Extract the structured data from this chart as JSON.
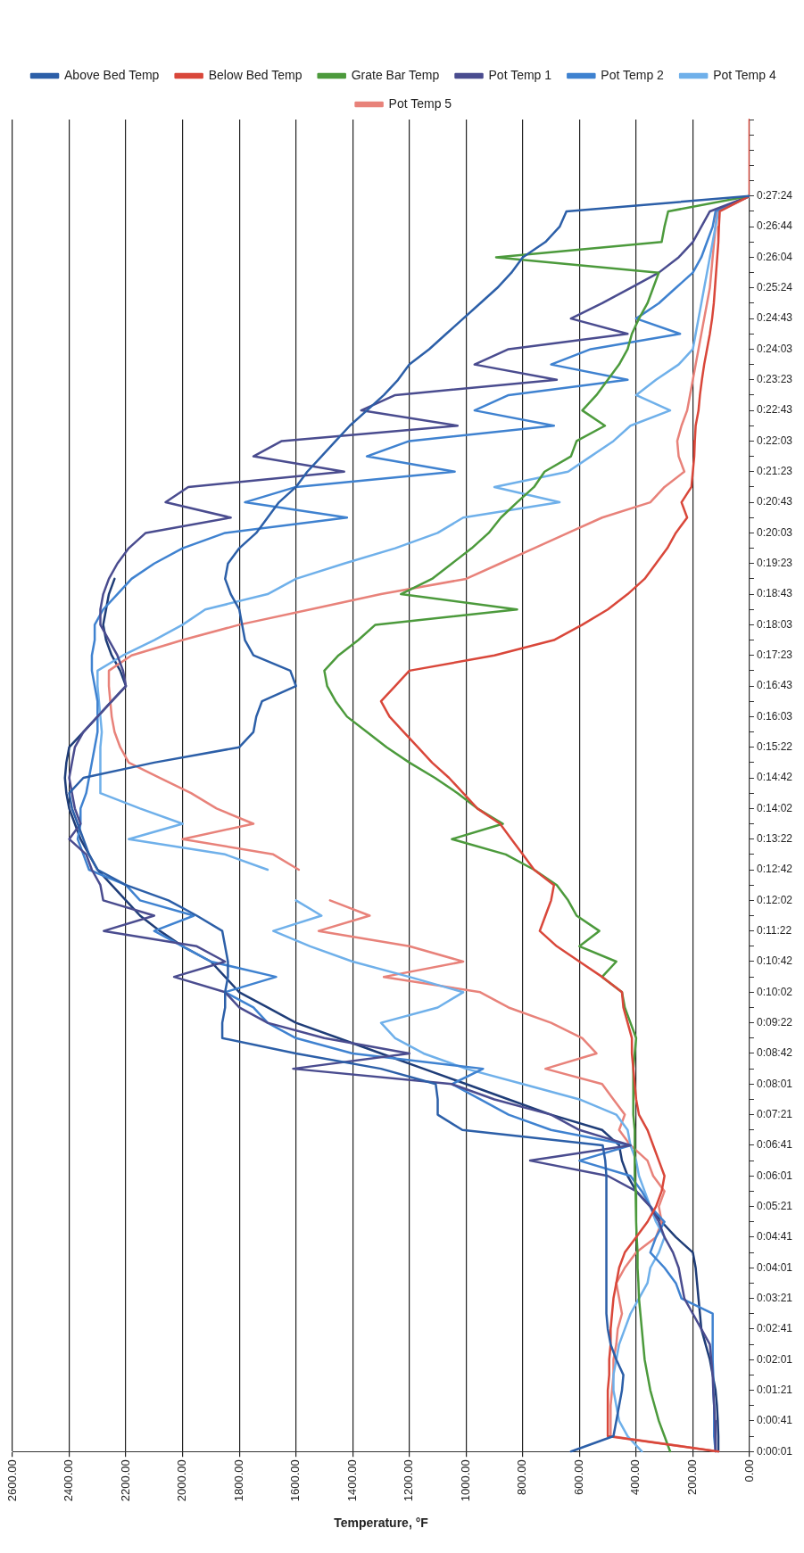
{
  "chart_data": {
    "type": "line",
    "orientation": "horizontal",
    "xlabel": "Temperature, °F",
    "grid": "x",
    "legend": "top",
    "marker": "none",
    "categories": [
      null,
      null,
      null,
      null,
      null,
      "0:27:24",
      null,
      "0:26:44",
      null,
      "0:26:04",
      null,
      "0:25:24",
      null,
      "0:24:43",
      null,
      "0:24:03",
      null,
      "0:23:23",
      null,
      "0:22:43",
      null,
      "0:22:03",
      null,
      "0:21:23",
      null,
      "0:20:43",
      null,
      "0:20:03",
      null,
      "0:19:23",
      null,
      "0:18:43",
      null,
      "0:18:03",
      null,
      "0:17:23",
      null,
      "0:16:43",
      null,
      "0:16:03",
      null,
      "0:15:22",
      null,
      "0:14:42",
      null,
      "0:14:02",
      null,
      "0:13:22",
      null,
      "0:12:42",
      null,
      "0:12:02",
      null,
      "0:11:22",
      null,
      "0:10:42",
      null,
      "0:10:02",
      null,
      "0:09:22",
      null,
      "0:08:42",
      null,
      "0:08:01",
      null,
      "0:07:21",
      null,
      "0:06:41",
      null,
      "0:06:01",
      null,
      "0:05:21",
      null,
      "0:04:41",
      null,
      "0:04:01",
      null,
      "0:03:21",
      null,
      "0:02:41",
      null,
      "0:02:01",
      null,
      "0:01:21",
      null,
      "0:00:41",
      null,
      "0:00:01"
    ],
    "xlim": [
      2600,
      0
    ],
    "xticks": [
      {
        "value": 0,
        "label": "0.00"
      },
      {
        "value": 200,
        "label": "200.00"
      },
      {
        "value": 400,
        "label": "400.00"
      },
      {
        "value": 600,
        "label": "600.00"
      },
      {
        "value": 800,
        "label": "800.00"
      },
      {
        "value": 1000,
        "label": "1000.00"
      },
      {
        "value": 1200,
        "label": "1200.00"
      },
      {
        "value": 1400,
        "label": "1400.00"
      },
      {
        "value": 1600,
        "label": "1600.00"
      },
      {
        "value": 1800,
        "label": "1800.00"
      },
      {
        "value": 2000,
        "label": "2000.00"
      },
      {
        "value": 2200,
        "label": "2200.00"
      },
      {
        "value": 2400,
        "label": "2400.00"
      },
      {
        "value": 2600,
        "label": "2600.00"
      }
    ],
    "series": [
      {
        "name": "Above Bed Temp",
        "color": "#2c5fa8",
        "values": [
          null,
          null,
          null,
          null,
          null,
          0,
          646,
          670,
          720,
          800,
          840,
          890,
          950,
          1010,
          1070,
          1130,
          1200,
          1240,
          1290,
          1350,
          1410,
          1460,
          1510,
          1560,
          1600,
          1660,
          1700,
          1740,
          1800,
          1840,
          1850,
          1830,
          1800,
          1790,
          1780,
          1750,
          1620,
          1600,
          1720,
          1740,
          1750,
          1800,
          2100,
          2350,
          2400,
          2390,
          2370,
          2350,
          2330,
          2300,
          2200,
          2050,
          1950,
          1860,
          1850,
          1840,
          1840,
          1850,
          1850,
          1860,
          1860,
          1600,
          1300,
          1107,
          1100,
          1100,
          1013,
          518,
          509,
          505,
          505,
          505,
          505,
          505,
          505,
          505,
          505,
          505,
          505,
          500,
          490,
          470,
          445,
          450,
          460,
          470,
          480,
          630
        ]
      },
      {
        "name": "Below Bed Temp",
        "color": "#d9473a",
        "values": [
          0,
          0,
          0,
          0,
          0,
          0,
          105,
          108,
          110,
          114,
          118,
          122,
          126,
          132,
          140,
          150,
          160,
          168,
          175,
          180,
          190,
          193,
          195,
          200,
          205,
          240,
          220,
          260,
          290,
          330,
          370,
          430,
          500,
          590,
          690,
          900,
          1200,
          1250,
          1300,
          1270,
          1220,
          1170,
          1120,
          1060,
          1010,
          960,
          880,
          840,
          800,
          760,
          690,
          700,
          720,
          740,
          680,
          600,
          520,
          450,
          445,
          430,
          415,
          415,
          410,
          405,
          400,
          390,
          360,
          340,
          320,
          300,
          310,
          330,
          360,
          400,
          440,
          460,
          470,
          480,
          485,
          490,
          490,
          495,
          495,
          500,
          500,
          500,
          500,
          110
        ]
      },
      {
        "name": "Grate Bar Temp",
        "color": "#4c9a3c",
        "values": [
          null,
          null,
          null,
          null,
          null,
          0,
          287,
          300,
          310,
          894,
          320,
          340,
          360,
          390,
          415,
          430,
          460,
          500,
          540,
          590,
          510,
          610,
          630,
          723,
          760,
          820,
          877,
          920,
          980,
          1050,
          1120,
          1230,
          820,
          1320,
          1380,
          1450,
          1500,
          1490,
          1460,
          1420,
          1350,
          1280,
          1200,
          1110,
          1030,
          960,
          870,
          1050,
          860,
          760,
          680,
          640,
          610,
          530,
          600,
          470,
          520,
          450,
          440,
          420,
          400,
          405,
          410,
          410,
          410,
          410,
          405,
          405,
          405,
          405,
          402,
          400,
          400,
          398,
          395,
          395,
          392,
          390,
          385,
          380,
          375,
          370,
          360,
          350,
          335,
          320,
          300,
          280
        ]
      },
      {
        "name": "Pot Temp 1",
        "color": "#4a4c8f",
        "values": [
          null,
          null,
          null,
          null,
          null,
          0,
          140,
          170,
          200,
          250,
          320,
          420,
          520,
          630,
          430,
          850,
          970,
          680,
          1250,
          1370,
          1030,
          1650,
          1750,
          1430,
          1980,
          2060,
          1830,
          2130,
          2190,
          2230,
          2260,
          2280,
          2290,
          2290,
          2260,
          2230,
          2210,
          2200,
          2250,
          2300,
          2350,
          2380,
          2390,
          2400,
          2390,
          2380,
          2360,
          2400,
          2340,
          2320,
          2290,
          2280,
          2100,
          2278,
          1950,
          1850,
          2030,
          1850,
          1800,
          1700,
          1500,
          1200,
          1610,
          1050,
          900,
          700,
          600,
          420,
          774,
          500,
          400,
          350,
          320,
          300,
          270,
          250,
          240,
          230,
          200,
          170,
          140,
          135,
          130,
          128,
          125,
          122,
          120,
          120
        ]
      },
      {
        "name": "Pot Temp 2",
        "color": "#3f82d0",
        "values": [
          null,
          null,
          null,
          null,
          null,
          0,
          120,
          130,
          150,
          170,
          200,
          260,
          320,
          400,
          245,
          560,
          700,
          430,
          850,
          970,
          690,
          1200,
          1350,
          1040,
          1600,
          1780,
          1420,
          1850,
          2000,
          2100,
          2180,
          2230,
          2280,
          2310,
          2310,
          2320,
          2320,
          2310,
          2300,
          2300,
          2300,
          2310,
          2320,
          2330,
          2340,
          2360,
          2360,
          2370,
          2350,
          2330,
          2200,
          2150,
          1960,
          2100,
          2000,
          1900,
          1670,
          1850,
          1750,
          1700,
          1600,
          1400,
          940,
          1050,
          950,
          850,
          700,
          420,
          600,
          420,
          380,
          350,
          300,
          330,
          350,
          300,
          260,
          240,
          130,
          130,
          130,
          130,
          128,
          128,
          125,
          125,
          125,
          120
        ]
      },
      {
        "name": "Pot Temp 4",
        "color": "#6fb0ea",
        "values": [
          null,
          null,
          null,
          null,
          null,
          0,
          110,
          120,
          130,
          140,
          150,
          160,
          170,
          180,
          190,
          200,
          250,
          330,
          400,
          280,
          420,
          480,
          560,
          640,
          900,
          670,
          1010,
          1100,
          1250,
          1430,
          1600,
          1700,
          1920,
          2000,
          2100,
          2210,
          2300,
          2300,
          2295,
          2290,
          2285,
          2290,
          2290,
          2290,
          2290,
          2150,
          2000,
          2190,
          1850,
          1700,
          null,
          1600,
          1510,
          1680,
          1550,
          1400,
          1200,
          1010,
          1100,
          1300,
          1250,
          1150,
          1000,
          800,
          600,
          470,
          430,
          420,
          400,
          390,
          370,
          350,
          330,
          300,
          320,
          350,
          360,
          390,
          420,
          440,
          460,
          470,
          480,
          480,
          470,
          460,
          430,
          380
        ]
      },
      {
        "name": "Pot Temp 5",
        "color": "#e8827a",
        "values": [
          null,
          null,
          null,
          null,
          null,
          0,
          115,
          120,
          125,
          130,
          135,
          140,
          150,
          160,
          170,
          180,
          190,
          200,
          210,
          220,
          240,
          255,
          250,
          230,
          300,
          350,
          520,
          640,
          760,
          880,
          1000,
          1300,
          1550,
          1800,
          2000,
          2180,
          2260,
          2260,
          2255,
          2250,
          2240,
          2220,
          2190,
          2080,
          1970,
          1880,
          1750,
          2000,
          1680,
          1590,
          null,
          1480,
          1340,
          1520,
          1200,
          1010,
          1290,
          950,
          850,
          700,
          590,
          540,
          720,
          520,
          480,
          440,
          460,
          420,
          360,
          340,
          300,
          320,
          310,
          330,
          400,
          440,
          470,
          460,
          450,
          465,
          470,
          480,
          480,
          485,
          490,
          490,
          490,
          110
        ]
      },
      {
        "color": "#1f3d78",
        "values": [
          null,
          null,
          null,
          null,
          null,
          null,
          null,
          null,
          null,
          null,
          null,
          null,
          null,
          null,
          null,
          null,
          null,
          null,
          null,
          null,
          null,
          null,
          null,
          null,
          null,
          null,
          null,
          null,
          null,
          null,
          2240,
          2260,
          2270,
          2280,
          2270,
          2250,
          2220,
          2200,
          2250,
          2300,
          2350,
          2400,
          2410,
          2415,
          2410,
          2400,
          2380,
          2360,
          2330,
          2300,
          2250,
          2200,
          2150,
          2080,
          2000,
          1900,
          1850,
          1800,
          1700,
          1600,
          1450,
          1300,
          1150,
          1000,
          850,
          700,
          520,
          460,
          450,
          430,
          400,
          350,
          310,
          260,
          200,
          190,
          185,
          180,
          175,
          170,
          155,
          140,
          130,
          120,
          115,
          112,
          110,
          110
        ]
      }
    ]
  }
}
